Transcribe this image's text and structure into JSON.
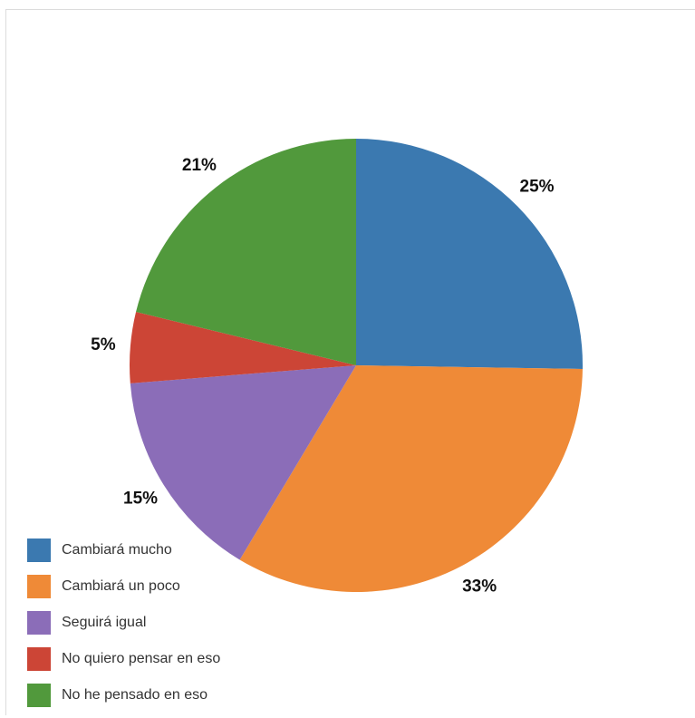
{
  "chart_data": {
    "type": "pie",
    "title": "",
    "slices": [
      {
        "label": "Cambiará mucho",
        "value": 25,
        "value_label": "25%",
        "color": "#3b79b0"
      },
      {
        "label": "Cambiará un poco",
        "value": 33,
        "value_label": "33%",
        "color": "#ef8a37"
      },
      {
        "label": "Seguirá igual",
        "value": 15,
        "value_label": "15%",
        "color": "#8b6db8"
      },
      {
        "label": "No quiero pensar en eso",
        "value": 5,
        "value_label": "5%",
        "color": "#cc4536"
      },
      {
        "label": "No he pensado en eso",
        "value": 21,
        "value_label": "21%",
        "color": "#51993c"
      }
    ],
    "legend_position": "bottom-left",
    "start_angle_deg": 0,
    "direction": "clockwise"
  }
}
